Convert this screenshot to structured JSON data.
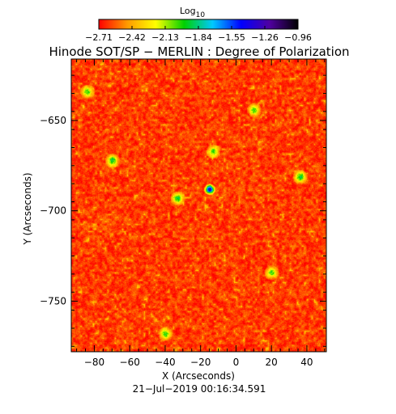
{
  "title": "Hinode SOT/SP − MERLIN : Degree of Polarization",
  "timestamp": "21−Jul−2019 00:16:34.591",
  "colorbar": {
    "label_base": "Log",
    "label_sub": "10",
    "ticks": [
      "−2.71",
      "−2.42",
      "−2.13",
      "−1.84",
      "−1.55",
      "−1.26",
      "−0.96"
    ],
    "range": [
      -2.71,
      -0.96
    ],
    "colors": [
      "#ff0000",
      "#ff9a00",
      "#ffff00",
      "#00d000",
      "#00c8ff",
      "#0000ff",
      "#5000a0",
      "#000000"
    ]
  },
  "chart_data": {
    "type": "heatmap",
    "title": "Hinode SOT/SP − MERLIN : Degree of Polarization",
    "xlabel": "X (Arcseconds)",
    "ylabel": "Y (Arcseconds)",
    "xlim": [
      -93,
      51
    ],
    "ylim": [
      -778,
      -616
    ],
    "xticks": [
      -80,
      -60,
      -40,
      -20,
      0,
      20,
      40
    ],
    "xtick_labels": [
      "−80",
      "−60",
      "−40",
      "−20",
      "0",
      "20",
      "40"
    ],
    "yticks": [
      -650,
      -700,
      -750
    ],
    "ytick_labels": [
      "−650",
      "−700",
      "−750"
    ],
    "value_scale": "log10",
    "value_range": [
      -2.71,
      -0.96
    ],
    "typical_level": -2.65,
    "strong_features": [
      {
        "x": -15,
        "y": -688,
        "level": -1.3
      },
      {
        "x": -33,
        "y": -693,
        "level": -1.9
      },
      {
        "x": -70,
        "y": -672,
        "level": -1.9
      },
      {
        "x": 36,
        "y": -681,
        "level": -1.9
      },
      {
        "x": 20,
        "y": -734,
        "level": -2.0
      },
      {
        "x": -13,
        "y": -667,
        "level": -2.0
      },
      {
        "x": -40,
        "y": -768,
        "level": -2.0
      },
      {
        "x": 10,
        "y": -644,
        "level": -2.0
      },
      {
        "x": -84,
        "y": -634,
        "level": -2.0
      }
    ]
  }
}
